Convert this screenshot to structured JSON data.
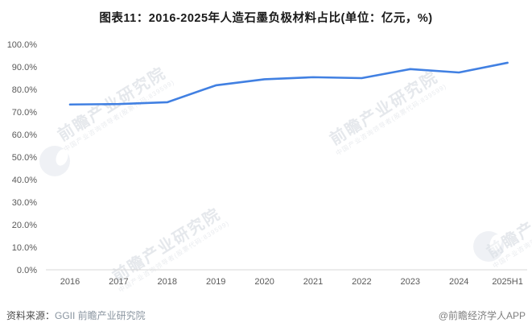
{
  "title": "图表11：2016-2025年人造石墨负极材料占比(单位：亿元，%)",
  "chart_data": {
    "type": "line",
    "title": "图表11：2016-2025年人造石墨负极材料占比(单位：亿元，%)",
    "categories": [
      "2016",
      "2017",
      "2018",
      "2019",
      "2020",
      "2021",
      "2022",
      "2023",
      "2024",
      "2025H1"
    ],
    "values": [
      73.3,
      73.5,
      74.3,
      81.8,
      84.5,
      85.4,
      85.0,
      89.0,
      87.5,
      91.8
    ],
    "unit": "%",
    "ylim": [
      0,
      100
    ],
    "ytick_values": [
      0,
      10,
      20,
      30,
      40,
      50,
      60,
      70,
      80,
      90,
      100
    ],
    "ytick_labels": [
      "0.0%",
      "10.0%",
      "20.0%",
      "30.0%",
      "40.0%",
      "50.0%",
      "60.0%",
      "70.0%",
      "80.0%",
      "90.0%",
      "100.0%"
    ],
    "grid": false,
    "legend": "none",
    "line_color": "#4180e2",
    "axis_color": "#d9d9d9",
    "tick_text_color": "#595959"
  },
  "footer": {
    "source_prefix": "资料来源：",
    "source_value": "GGII 前瞻产业研究院",
    "credit": "@前瞻经济学人APP"
  },
  "watermark": {
    "text": "前瞻产业研究院",
    "subtext": "中国产业咨询领导者(股票代码:839599)"
  }
}
